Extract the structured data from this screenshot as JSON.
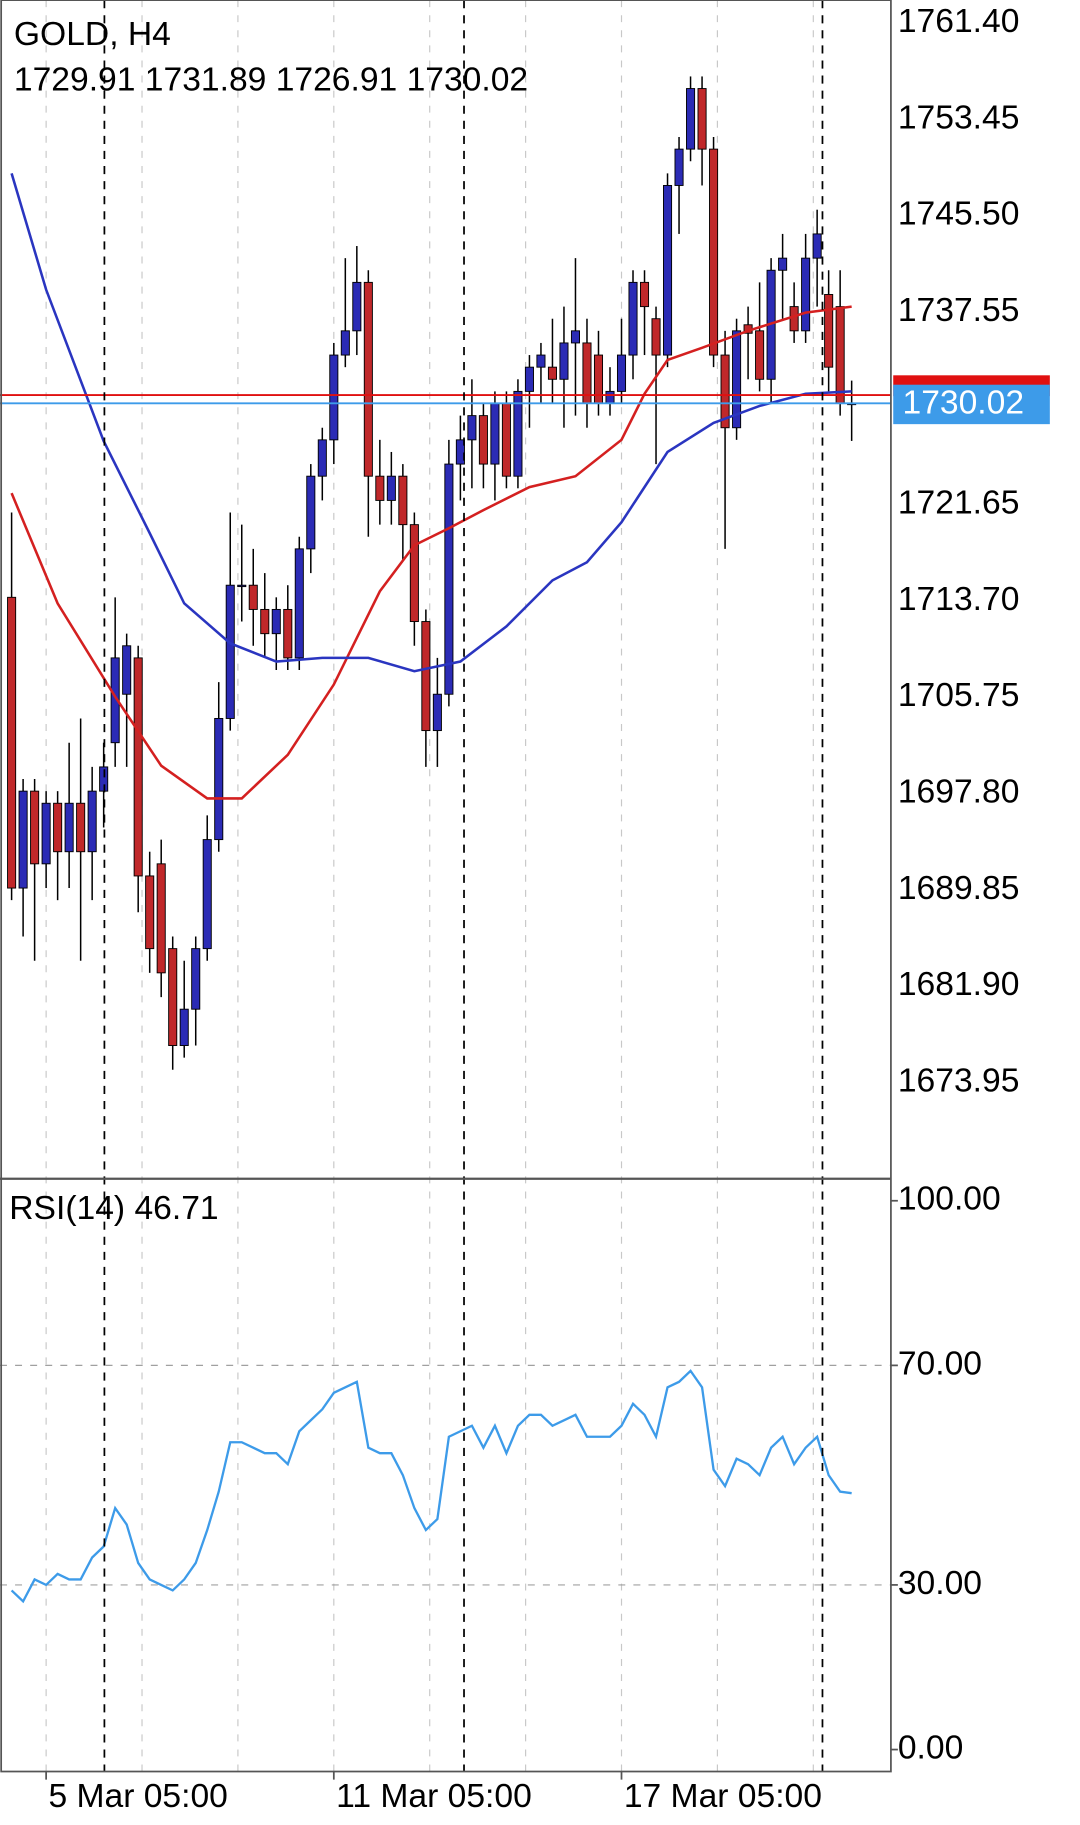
{
  "chart_data": {
    "type": "candlestick",
    "title": "GOLD, H4",
    "up_color": "#2b2bb5",
    "down_color": "#c0282a",
    "ylim": [
      1666.1,
      1763.3
    ],
    "yticks": [
      {
        "value": 1761.4,
        "label": "1761.40"
      },
      1753.45,
      {
        "value": 1745.5,
        "label": "1745.50"
      },
      1737.55,
      1721.65,
      {
        "value": 1713.7,
        "label": "1713.70"
      },
      1705.75,
      {
        "value": 1697.8,
        "label": "1697.80"
      },
      1689.85,
      {
        "value": 1681.9,
        "label": "1681.90"
      },
      1673.95
    ],
    "grid": true,
    "xticks": [
      {
        "value": 3,
        "label": "5 Mar 05:00"
      },
      {
        "value": 28,
        "label": "11 Mar 05:00"
      },
      {
        "value": 53,
        "label": "17 Mar 05:00"
      }
    ],
    "candles": [
      [
        1714,
        1721,
        1689,
        1690
      ],
      [
        1690,
        1699,
        1686,
        1698
      ],
      [
        1698,
        1699,
        1684,
        1692
      ],
      [
        1692,
        1698,
        1690,
        1697
      ],
      [
        1697,
        1698,
        1689,
        1693
      ],
      [
        1693,
        1702,
        1690,
        1697
      ],
      [
        1697,
        1704,
        1684,
        1693
      ],
      [
        1693,
        1700,
        1689,
        1698
      ],
      [
        1698,
        1702,
        1695,
        1700
      ],
      [
        1702,
        1714,
        1700,
        1709
      ],
      [
        1706,
        1711,
        1700,
        1710
      ],
      [
        1709,
        1710,
        1688,
        1691
      ],
      [
        1691,
        1693,
        1683,
        1685
      ],
      [
        1692,
        1694,
        1681,
        1683
      ],
      [
        1685,
        1686,
        1675,
        1677
      ],
      [
        1677,
        1684,
        1676,
        1680
      ],
      [
        1680,
        1686,
        1677,
        1685
      ],
      [
        1685,
        1696,
        1684,
        1694
      ],
      [
        1694,
        1707,
        1693,
        1704
      ],
      [
        1704,
        1721,
        1703,
        1715
      ],
      [
        1715,
        1720,
        1712,
        1715
      ],
      [
        1715,
        1718,
        1710,
        1713
      ],
      [
        1713,
        1716,
        1709,
        1711
      ],
      [
        1711,
        1714,
        1708,
        1713
      ],
      [
        1713,
        1715,
        1708,
        1709
      ],
      [
        1709,
        1719,
        1708,
        1718
      ],
      [
        1718,
        1725,
        1716,
        1724
      ],
      [
        1724,
        1728,
        1722,
        1727
      ],
      [
        1727,
        1735,
        1725,
        1734
      ],
      [
        1734,
        1742,
        1733,
        1736
      ],
      [
        1736,
        1743,
        1734,
        1740
      ],
      [
        1740,
        1741,
        1719,
        1724
      ],
      [
        1724,
        1727,
        1720,
        1722
      ],
      [
        1722,
        1726,
        1720,
        1724
      ],
      [
        1724,
        1725,
        1717,
        1720
      ],
      [
        1720,
        1721,
        1710,
        1712
      ],
      [
        1712,
        1713,
        1700,
        1703
      ],
      [
        1703,
        1709,
        1700,
        1706
      ],
      [
        1706,
        1727,
        1705,
        1725
      ],
      [
        1725,
        1729,
        1722,
        1727
      ],
      [
        1727,
        1732,
        1723,
        1729
      ],
      [
        1729,
        1730,
        1723,
        1725
      ],
      [
        1725,
        1731,
        1722,
        1730
      ],
      [
        1730,
        1731,
        1723,
        1724
      ],
      [
        1724,
        1732,
        1723,
        1731
      ],
      [
        1731,
        1734,
        1728,
        1733
      ],
      [
        1733,
        1735,
        1730,
        1734
      ],
      [
        1733,
        1737,
        1730,
        1732
      ],
      [
        1732,
        1738,
        1728,
        1735
      ],
      [
        1735,
        1742,
        1729,
        1736
      ],
      [
        1735,
        1737,
        1728,
        1730
      ],
      [
        1734,
        1736,
        1729,
        1730
      ],
      [
        1730,
        1733,
        1729,
        1731
      ],
      [
        1731,
        1737,
        1730,
        1734
      ],
      [
        1734,
        1741,
        1732,
        1740
      ],
      [
        1740,
        1741,
        1734,
        1738
      ],
      [
        1737,
        1738,
        1725,
        1734
      ],
      [
        1734,
        1749,
        1733,
        1748
      ],
      [
        1748,
        1752,
        1744,
        1751
      ],
      [
        1751,
        1757,
        1750,
        1756
      ],
      [
        1756,
        1757,
        1748,
        1751
      ],
      [
        1751,
        1752,
        1733,
        1734
      ],
      [
        1734,
        1736,
        1718,
        1728
      ],
      [
        1728,
        1737,
        1727,
        1736
      ],
      [
        1736.5,
        1738,
        1732,
        1735.8
      ],
      [
        1736,
        1740,
        1731,
        1732
      ],
      [
        1732,
        1742,
        1730,
        1741
      ],
      [
        1741,
        1744,
        1737,
        1742
      ],
      [
        1738,
        1740,
        1735,
        1736
      ],
      [
        1736,
        1744,
        1735,
        1742
      ],
      [
        1742,
        1746,
        1738,
        1744
      ],
      [
        1739,
        1741,
        1731,
        1733
      ],
      [
        1738,
        1741,
        1729,
        1730
      ],
      [
        1729.91,
        1731.89,
        1726.91,
        1730.02
      ]
    ],
    "ma": [
      {
        "color": "#d42020",
        "x": [
          0,
          4,
          9,
          13,
          17,
          20,
          24,
          28,
          32,
          35,
          38,
          41,
          45,
          49,
          53,
          55,
          57,
          60,
          64,
          69,
          73
        ],
        "values": [
          1722.6,
          1713.5,
          1705.8,
          1700.1,
          1697.4,
          1697.4,
          1701,
          1706.8,
          1714.5,
          1718.3,
          1719.7,
          1721.2,
          1723.1,
          1724,
          1727,
          1730.8,
          1733.6,
          1734.6,
          1736,
          1737.5,
          1738
        ]
      },
      {
        "color": "#2a35c0",
        "x": [
          0,
          3,
          8,
          12,
          15,
          19,
          23,
          27,
          31,
          35,
          39,
          43,
          47,
          50,
          53,
          57,
          61,
          65,
          69,
          73
        ],
        "values": [
          1749,
          1739.4,
          1726.9,
          1719.3,
          1713.5,
          1710.2,
          1708.7,
          1709,
          1709,
          1707.9,
          1708.7,
          1711.6,
          1715.4,
          1716.9,
          1720.2,
          1726,
          1728.4,
          1729.8,
          1730.8,
          1731
        ]
      }
    ],
    "ask": 1730.7,
    "ask_color": "#e01010",
    "bid": 1730.02,
    "bid_color": "#3d9be9",
    "rsi": {
      "title": "RSI(14)",
      "color": "#3d9be9",
      "ylim": [
        -4,
        103.8
      ],
      "yticks": [
        {
          "value": 100,
          "label": "100.00"
        },
        {
          "value": 70,
          "label": "70.00"
        },
        {
          "value": 30,
          "label": "30.00"
        },
        {
          "value": 0,
          "label": "0.00"
        }
      ],
      "levels": [
        70,
        30
      ],
      "values": [
        29,
        27,
        31,
        30,
        32,
        31,
        31,
        35,
        37,
        44,
        41,
        34,
        31,
        30,
        29,
        31,
        34,
        40,
        47,
        56,
        56,
        55,
        54,
        54,
        52,
        58,
        60,
        62,
        65,
        66,
        67,
        55,
        54,
        54,
        50,
        44,
        40,
        42,
        57,
        58,
        59,
        55,
        59,
        54,
        59,
        61,
        61,
        59,
        60,
        61,
        57,
        57,
        57,
        59,
        63,
        61,
        57,
        66,
        67,
        69,
        66,
        51,
        48,
        53,
        52,
        50,
        55,
        57,
        52,
        55,
        57,
        50,
        47,
        46.71
      ]
    }
  }
}
